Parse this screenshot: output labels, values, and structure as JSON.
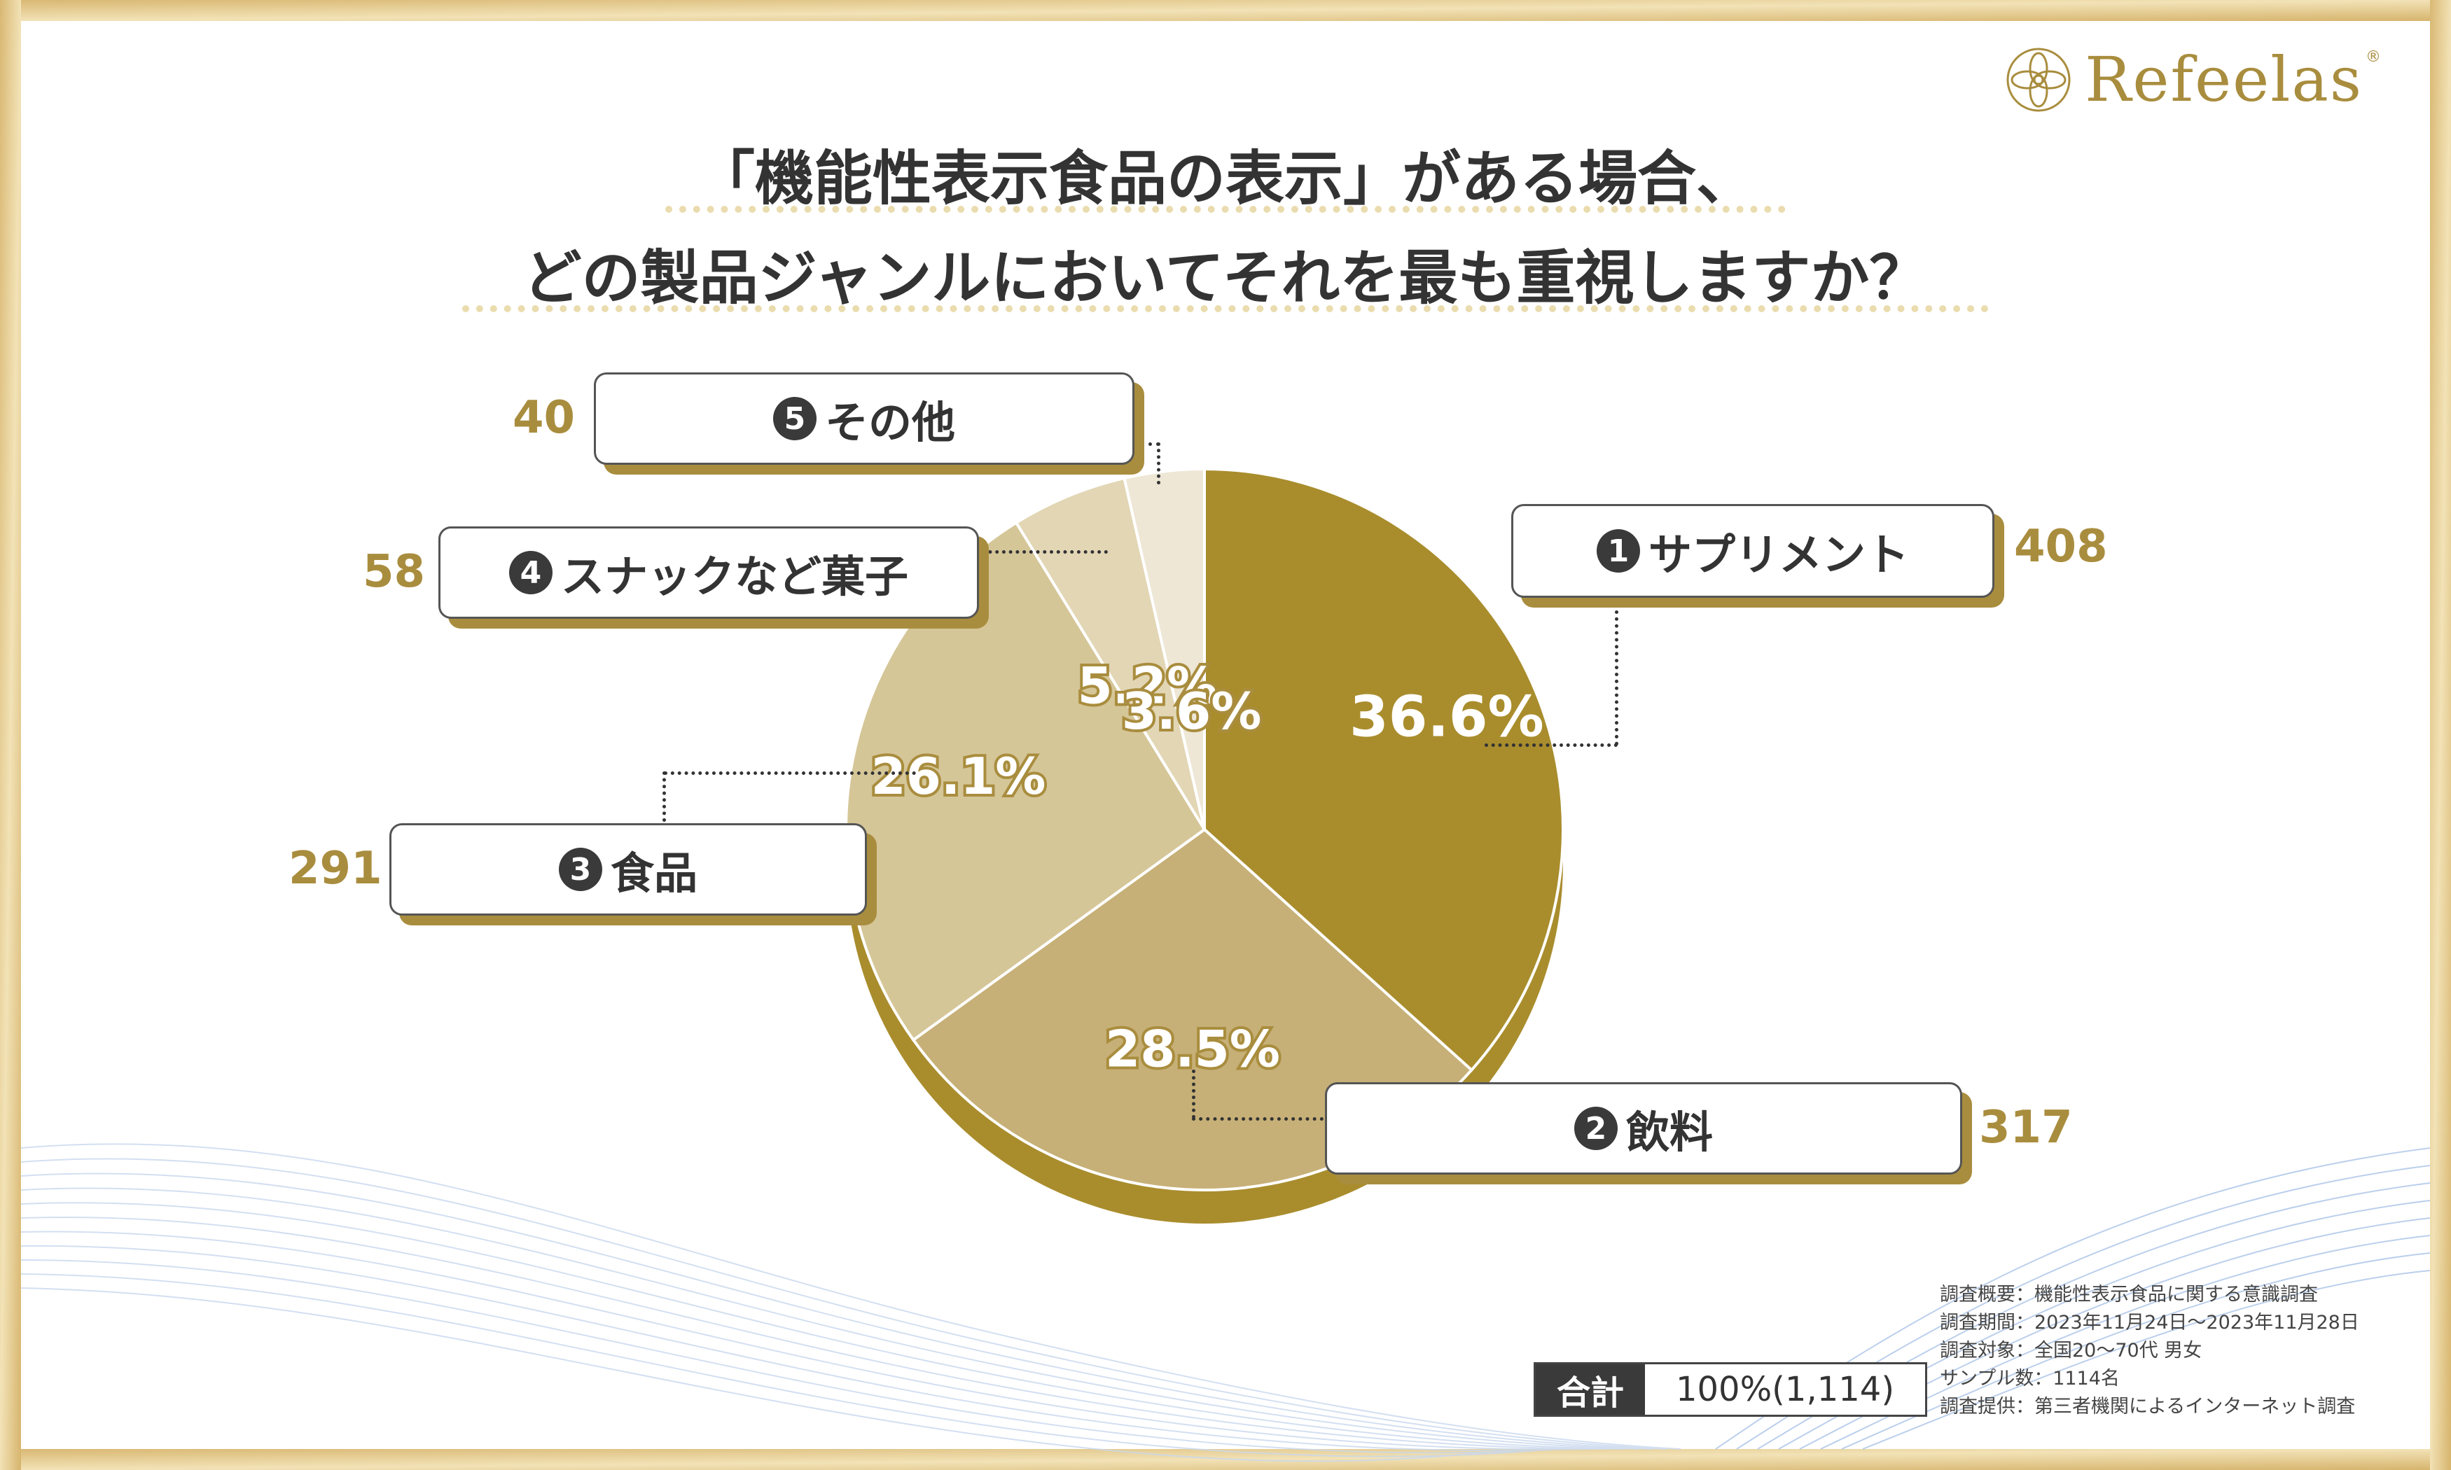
{
  "brand": {
    "name": "Refeelas",
    "reg": "®",
    "logo_icon": "lotus-circle-icon"
  },
  "title": {
    "line1": "「機能性表示食品の表示」がある場合、",
    "line2": "どの製品ジャンルにおいてそれを最も重視しますか？"
  },
  "chart_data": {
    "type": "pie",
    "title": "「機能性表示食品の表示」がある場合、どの製品ジャンルにおいてそれを最も重視しますか？",
    "categories": [
      "サプリメント",
      "飲料",
      "食品",
      "スナックなど菓子",
      "その他"
    ],
    "values": [
      408,
      317,
      291,
      58,
      40
    ],
    "percent_labels": [
      "36.6%",
      "28.5%",
      "26.1%",
      "5.2%",
      "3.6%"
    ],
    "numbers": [
      "1",
      "2",
      "3",
      "4",
      "5"
    ],
    "counts": [
      "408",
      "317",
      "291",
      "58",
      "40"
    ],
    "colors": [
      "#a98d2d",
      "#c6b077",
      "#d5c698",
      "#e2d6b5",
      "#eee7d6"
    ],
    "shadow_color": "#a98d2d",
    "total_label": "合計",
    "total_value": "100%(1,114)"
  },
  "survey": {
    "items": [
      "調査概要：機能性表示食品に関する意識調査",
      "調査期間：2023年11月24日～2023年11月28日",
      "調査対象：全国20～70代 男女",
      "サンプル数：1114名",
      "調査提供：第三者機関によるインターネット調査"
    ]
  },
  "colors": {
    "gold": "#a98d3e",
    "frame_gold": "#dcc07c",
    "text_dark": "#333333"
  }
}
